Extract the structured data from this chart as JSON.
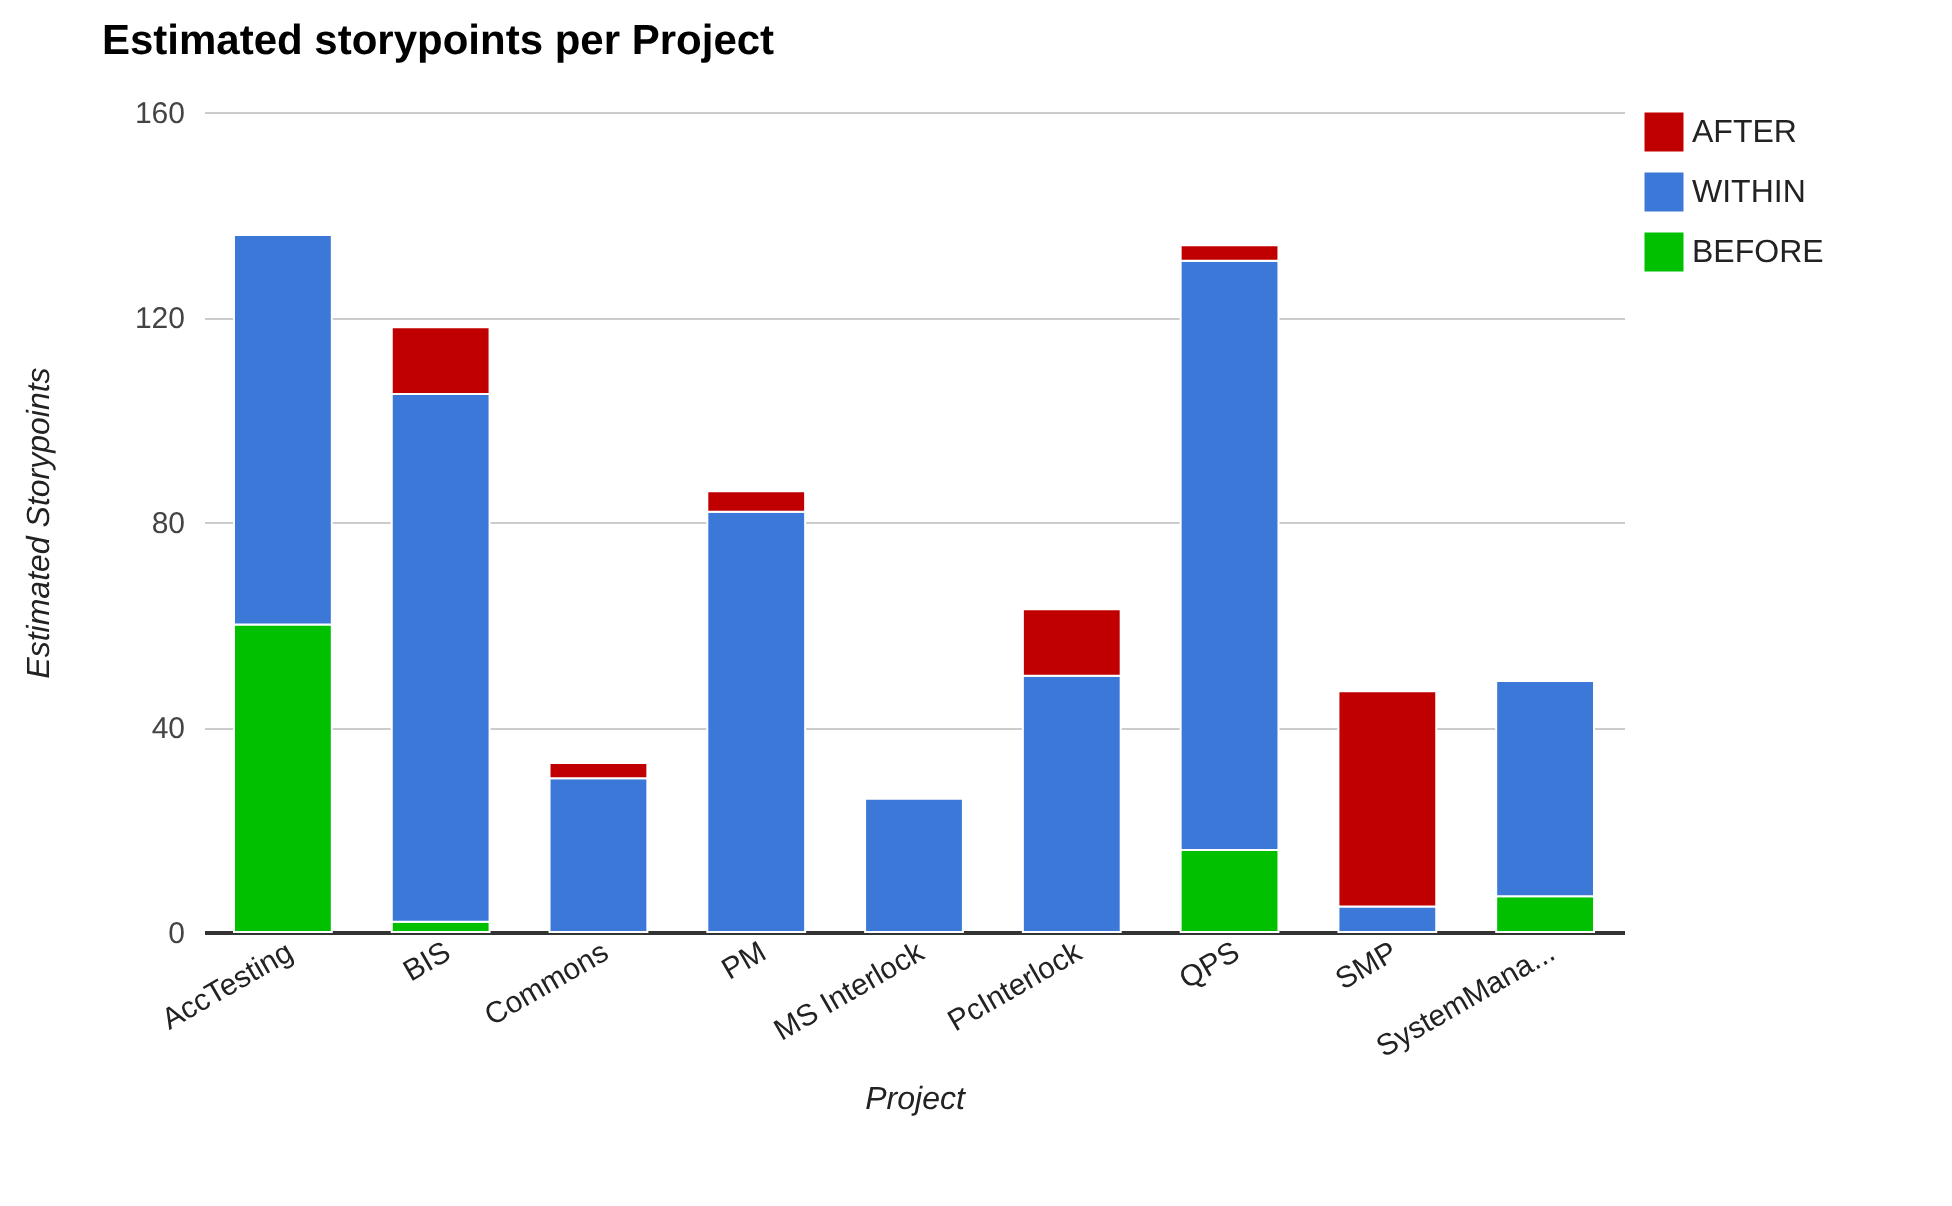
{
  "chart_data": {
    "type": "bar",
    "title": "Estimated storypoints per Project",
    "xlabel": "Project",
    "ylabel": "Estimated Storypoints",
    "categories": [
      "AccTesting",
      "BIS",
      "Commons",
      "PM",
      "MS Interlock",
      "PcInterlock",
      "QPS",
      "SMP",
      "SystemMana..."
    ],
    "series": [
      {
        "name": "BEFORE",
        "color": "#00c000",
        "values": [
          60,
          2,
          null,
          null,
          null,
          null,
          16,
          null,
          7
        ]
      },
      {
        "name": "WITHIN",
        "color": "#3c78d8",
        "values": [
          76,
          103,
          30,
          82,
          26,
          50,
          115,
          5,
          42
        ]
      },
      {
        "name": "AFTER",
        "color": "#c00000",
        "values": [
          null,
          13,
          3,
          4,
          null,
          13,
          3,
          42,
          null
        ]
      }
    ],
    "stacked": true,
    "ylim": [
      0,
      160
    ],
    "yticks": [
      0,
      40,
      80,
      120,
      160
    ],
    "grid": "y",
    "legend": "top right"
  }
}
